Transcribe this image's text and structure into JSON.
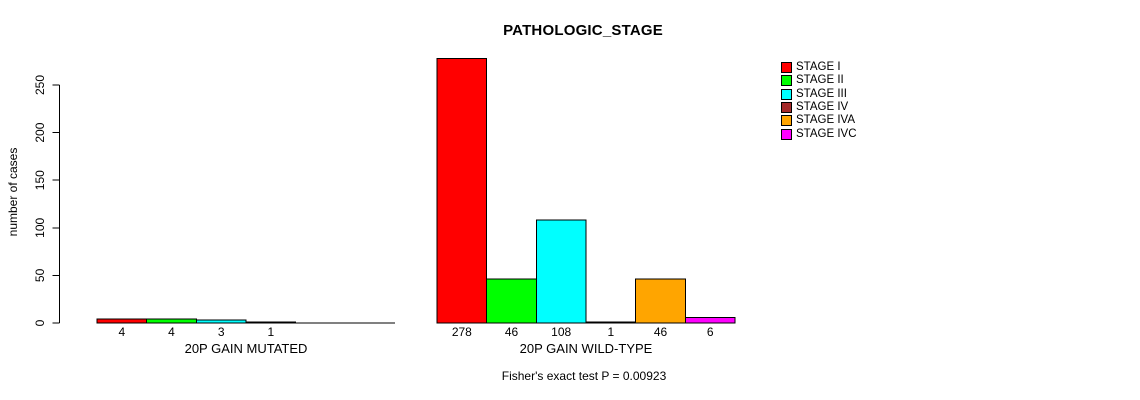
{
  "chart_data": {
    "type": "bar",
    "title": "PATHOLOGIC_STAGE",
    "ylabel": "number of cases",
    "footnote": "Fisher's exact test P = 0.00923",
    "ylim": [
      0,
      250
    ],
    "yticks": [
      0,
      50,
      100,
      150,
      200,
      250
    ],
    "grid": false,
    "legend_position": "right",
    "legend": [
      {
        "label": "STAGE I",
        "color": "#FF0000"
      },
      {
        "label": "STAGE II",
        "color": "#00FF00"
      },
      {
        "label": "STAGE III",
        "color": "#00FFFF"
      },
      {
        "label": "STAGE IV",
        "color": "#A52A2A"
      },
      {
        "label": "STAGE IVA",
        "color": "#FFA500"
      },
      {
        "label": "STAGE IVC",
        "color": "#FF00FF"
      }
    ],
    "groups": [
      {
        "label": "20P GAIN MUTATED",
        "values": [
          4,
          4,
          3,
          1,
          0,
          0
        ],
        "bar_labels": [
          "4",
          "4",
          "3",
          "1",
          "",
          ""
        ]
      },
      {
        "label": "20P GAIN WILD-TYPE",
        "values": [
          278,
          46,
          108,
          1,
          46,
          6
        ],
        "bar_labels": [
          "278",
          "46",
          "108",
          "1",
          "46",
          "6"
        ]
      }
    ],
    "axis_color": "#000000",
    "bar_border_color": "#000000"
  }
}
